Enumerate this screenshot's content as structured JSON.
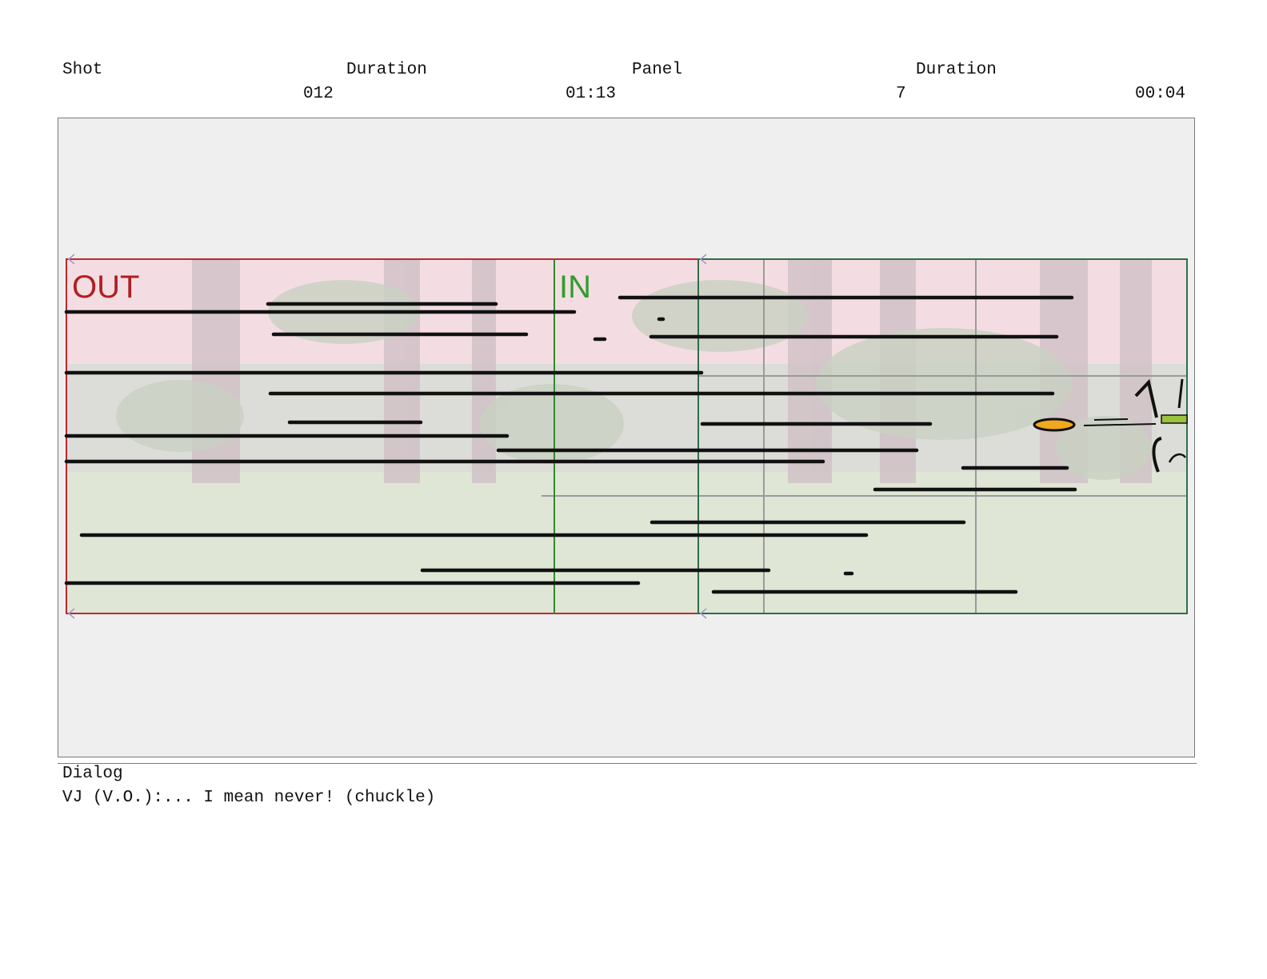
{
  "header": {
    "shot_label": "Shot",
    "shot_duration_label": "Duration",
    "panel_label": "Panel",
    "panel_duration_label": "Duration",
    "shot_value": "012",
    "shot_duration_value": "01:13",
    "panel_value": "7",
    "panel_duration_value": "00:04"
  },
  "panel_image": {
    "out_label": "OUT",
    "in_label": "IN",
    "colors": {
      "out_box": "#c0282d",
      "in_box": "#2e8b2e",
      "frame_box": "#2f6e4a",
      "out_text": "#b01e23",
      "in_text": "#2e9e2e",
      "sky": "#f4dde2",
      "ground": "#dfe6d6",
      "stroke": "#111111",
      "accent": "#f0a81c"
    }
  },
  "dialog": {
    "label": "Dialog",
    "text": "VJ (V.O.):... I mean never! (chuckle)"
  }
}
